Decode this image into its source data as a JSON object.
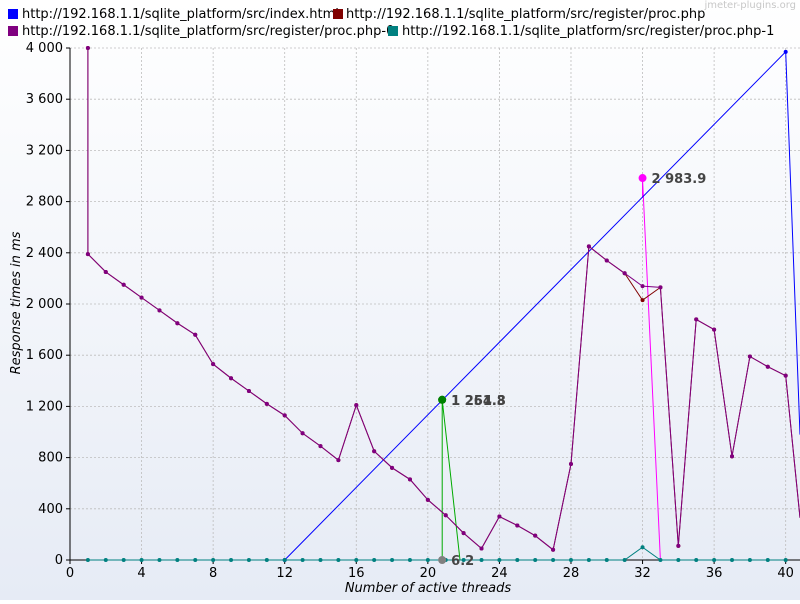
{
  "chart_data": {
    "type": "line",
    "watermark": "jmeter-plugins.org",
    "xlabel": "Number of active threads",
    "ylabel": "Response times in ms",
    "xlim": [
      0,
      40.8
    ],
    "ylim": [
      0,
      4000
    ],
    "x_ticks": [
      0,
      4,
      8,
      12,
      16,
      20,
      24,
      28,
      32,
      36,
      40
    ],
    "x_tick_labels": [
      "0",
      "4",
      "8",
      "12",
      "16",
      "20",
      "24",
      "28",
      "32",
      "36",
      "40"
    ],
    "y_ticks": [
      0,
      400,
      800,
      1200,
      1600,
      2000,
      2400,
      2800,
      3200,
      3600,
      4000
    ],
    "y_tick_labels": [
      "0",
      "400",
      "800",
      "1 200",
      "1 600",
      "2 000",
      "2 400",
      "2 800",
      "3 200",
      "3 600",
      "4 000"
    ],
    "grid": true,
    "legend_position": "top",
    "series": [
      {
        "name": "http://192.168.1.1/sqlite_platform/src/index.html",
        "color": "#0000ff",
        "line_color": "#0000ff",
        "marker_color": "#0000ff",
        "x": [
          12,
          40,
          40.8
        ],
        "y": [
          0,
          3970,
          980
        ]
      },
      {
        "name": "http://192.168.1.1/sqlite_platform/src/register/proc.php",
        "color": "#800000",
        "line_color": "#800000",
        "marker_color": "#800000",
        "x": [
          1,
          1,
          2,
          3,
          4,
          5,
          6,
          7,
          8,
          9,
          10,
          11,
          12,
          13,
          14,
          15,
          16,
          17,
          18,
          19,
          20,
          21,
          22,
          23,
          24,
          25,
          26,
          27,
          28,
          29,
          30,
          31,
          32,
          33,
          34,
          35,
          36,
          37,
          38,
          39,
          40,
          40.8
        ],
        "y": [
          4000,
          2390,
          2250,
          2150,
          2050,
          1950,
          1850,
          1760,
          1530,
          1420,
          1320,
          1220,
          1130,
          990,
          890,
          780,
          1210,
          850,
          720,
          630,
          470,
          350,
          210,
          90,
          340,
          270,
          190,
          80,
          750,
          2450,
          2340,
          2240,
          2030,
          2130,
          110,
          1880,
          1800,
          810,
          1590,
          1510,
          1440,
          330
        ]
      },
      {
        "name": "http://192.168.1.1/sqlite_platform/src/register/proc.php-0",
        "color": "#800080",
        "line_color": "#800080",
        "marker_color": "#800080",
        "x": [
          1,
          1,
          2,
          3,
          4,
          5,
          6,
          7,
          8,
          9,
          10,
          11,
          12,
          13,
          14,
          15,
          16,
          17,
          18,
          19,
          20,
          21,
          22,
          23,
          24,
          25,
          26,
          27,
          28,
          29,
          30,
          31,
          32,
          33,
          34,
          35,
          36,
          37,
          38,
          39,
          40,
          40.8
        ],
        "y": [
          4000,
          2390,
          2250,
          2150,
          2050,
          1950,
          1850,
          1760,
          1530,
          1420,
          1320,
          1220,
          1130,
          990,
          890,
          780,
          1210,
          850,
          720,
          630,
          470,
          350,
          210,
          90,
          340,
          270,
          190,
          80,
          750,
          2450,
          2340,
          2240,
          2140,
          2130,
          110,
          1880,
          1800,
          810,
          1590,
          1510,
          1440,
          330
        ]
      },
      {
        "name": "http://192.168.1.1/sqlite_platform/src/register/proc.php-1",
        "color": "#008080",
        "line_color": "#008080",
        "marker_color": "#008080",
        "x": [
          1,
          2,
          3,
          4,
          5,
          6,
          7,
          8,
          9,
          10,
          11,
          12,
          13,
          14,
          15,
          16,
          17,
          18,
          19,
          20,
          21,
          22,
          23,
          24,
          25,
          26,
          27,
          28,
          29,
          30,
          31,
          32,
          33,
          34,
          35,
          36,
          37,
          38,
          39,
          40
        ],
        "y": [
          0,
          0,
          0,
          0,
          0,
          0,
          0,
          0,
          0,
          0,
          0,
          0,
          0,
          0,
          0,
          0,
          0,
          0,
          0,
          0,
          0,
          0,
          0,
          0,
          0,
          0,
          0,
          0,
          0,
          0,
          0,
          100,
          0,
          0,
          0,
          0,
          0,
          0,
          0,
          0
        ]
      }
    ],
    "highlight_lines": [
      {
        "color": "#00aa00",
        "x": [
          20.8,
          20.8,
          21.8
        ],
        "y": [
          0,
          1251.8,
          0
        ]
      },
      {
        "color": "#ff00ff",
        "x": [
          32,
          32,
          33
        ],
        "y": [
          2830,
          2983.9,
          0
        ]
      }
    ],
    "annotations": [
      {
        "x": 20.8,
        "y": 1251.8,
        "label": "1 251.8",
        "marker_color": "#008000"
      },
      {
        "x": 20.8,
        "y": 1251.8,
        "label": "1 264.3",
        "marker_color": "#008000"
      },
      {
        "x": 32,
        "y": 2983.9,
        "label": "2 983.9",
        "marker_color": "#ff00ff"
      },
      {
        "x": 20.8,
        "y": 0,
        "label": "6.2",
        "marker_color": "#808080"
      }
    ]
  }
}
